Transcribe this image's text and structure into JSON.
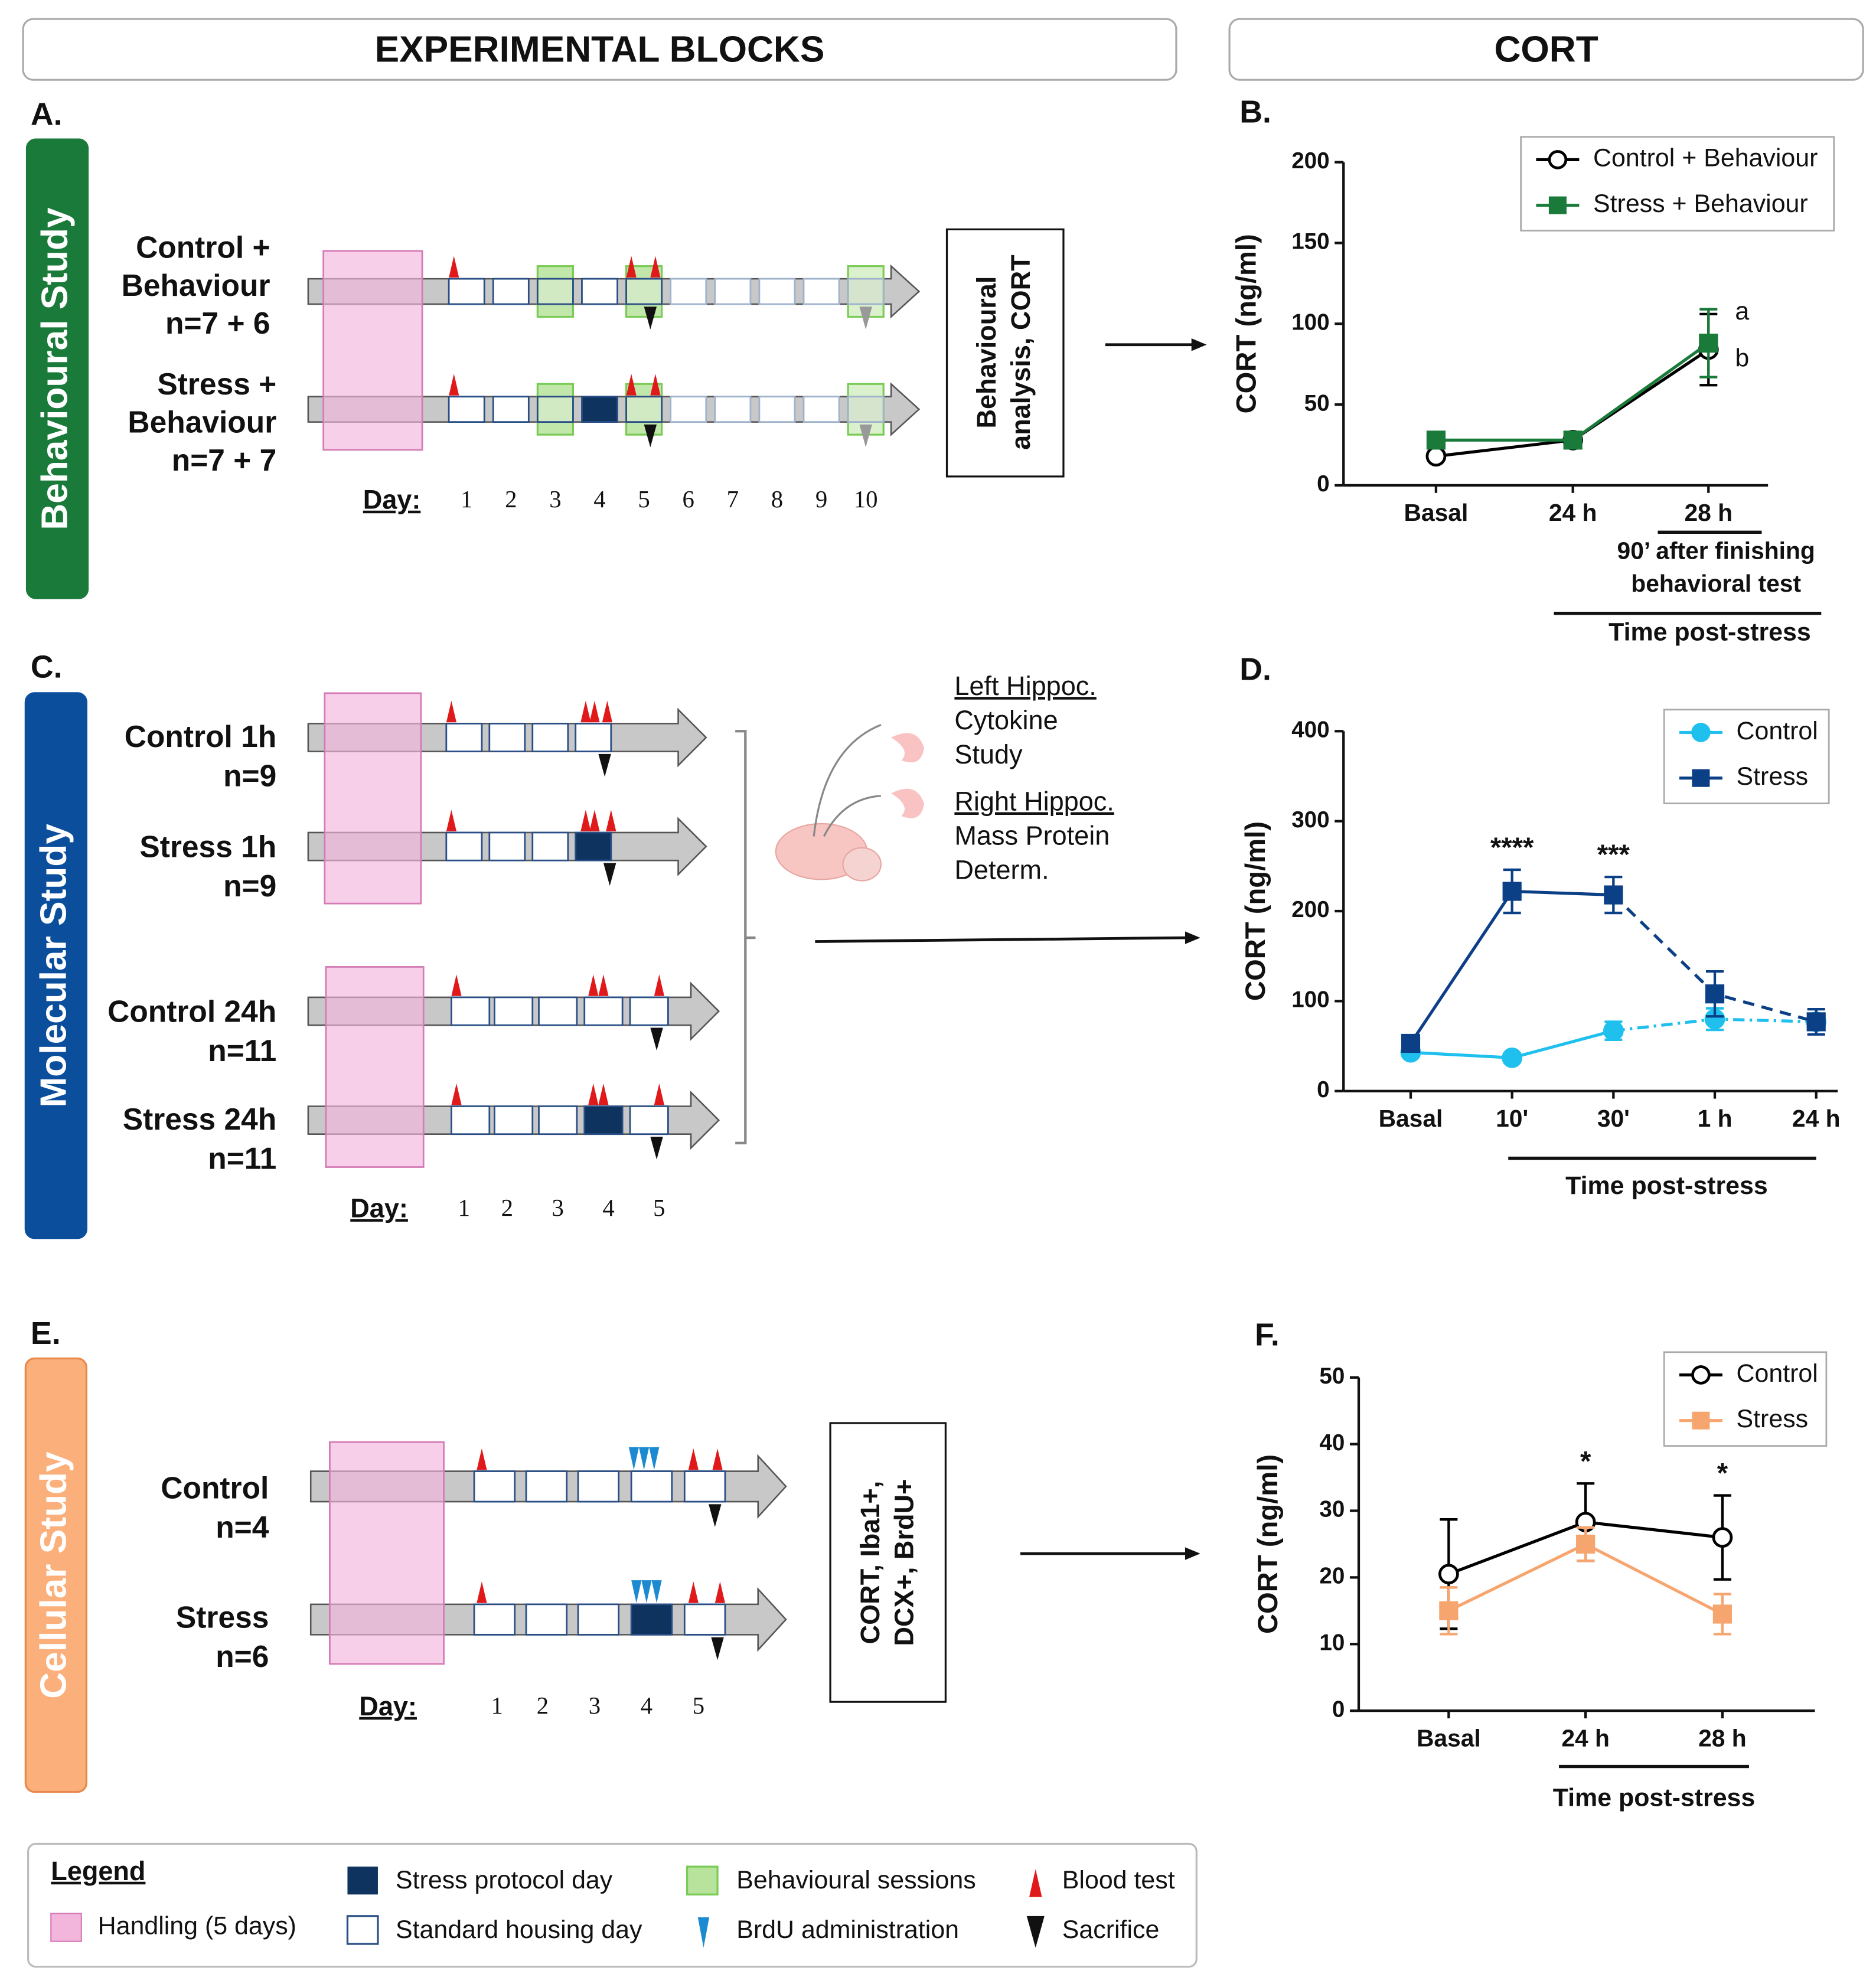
{
  "headers": {
    "left": "EXPERIMENTAL BLOCKS",
    "right": "CORT"
  },
  "panel_a": {
    "letter": "A.",
    "study": "Behavioural Study",
    "groups": [
      [
        "Control +",
        "Behaviour",
        "n=7 + 6"
      ],
      [
        "Stress +",
        "Behaviour",
        "n=7 + 7"
      ]
    ],
    "day_label": "Day:",
    "days": [
      1,
      2,
      3,
      4,
      5,
      6,
      7,
      8,
      9,
      10
    ],
    "outcome": [
      "Behavioural",
      "analysis, CORT"
    ]
  },
  "panel_c": {
    "letter": "C.",
    "study": "Molecular Study",
    "groups": [
      [
        "Control 1h",
        "n=9"
      ],
      [
        "Stress 1h",
        "n=9"
      ],
      [
        "Control 24h",
        "n=11"
      ],
      [
        "Stress 24h",
        "n=11"
      ]
    ],
    "day_label": "Day:",
    "days": [
      1,
      2,
      3,
      4,
      5
    ],
    "left_hippocampus": [
      "Left Hippoc.",
      "Cytokine",
      "Study"
    ],
    "right_hippocampus": [
      "Right Hippoc.",
      "Mass Protein",
      "Determ."
    ]
  },
  "panel_e": {
    "letter": "E.",
    "study": "Cellular Study",
    "groups": [
      [
        "Control",
        "n=4"
      ],
      [
        "Stress",
        "n=6"
      ]
    ],
    "day_label": "Day:",
    "days": [
      1,
      2,
      3,
      4,
      5
    ],
    "outcome": [
      "CORT, Iba1+,",
      "DCX+, BrdU+"
    ]
  },
  "chart_b": {
    "type": "line",
    "letter": "B.",
    "ylabel": "CORT (ng/ml)",
    "categories": [
      "Basal",
      "24 h",
      "28 h"
    ],
    "ylim": [
      0,
      200
    ],
    "yticks": [
      0,
      50,
      100,
      150,
      200
    ],
    "series": [
      {
        "name": "Control + Behaviour",
        "color": "#000000",
        "marker": "circle-open",
        "values": [
          18,
          28,
          84
        ],
        "errors": [
          null,
          null,
          22
        ],
        "annotations": [
          null,
          null,
          "b"
        ]
      },
      {
        "name": "Stress + Behaviour",
        "color": "#1a7a3a",
        "marker": "square",
        "values": [
          28,
          28,
          88
        ],
        "errors": [
          null,
          null,
          21
        ],
        "annotations": [
          null,
          null,
          "a"
        ]
      }
    ],
    "sub_label": [
      "90’ after finishing",
      "behavioral test"
    ],
    "xlabel": "Time post-stress"
  },
  "chart_d": {
    "type": "line",
    "letter": "D.",
    "ylabel": "CORT (ng/ml)",
    "categories": [
      "Basal",
      "10'",
      "30'",
      "1 h",
      "24 h"
    ],
    "ylim": [
      0,
      400
    ],
    "yticks": [
      0,
      100,
      200,
      300,
      400
    ],
    "series": [
      {
        "name": "Control",
        "color": "#1fc0ee",
        "marker": "circle",
        "values": [
          43,
          37,
          67,
          80,
          77
        ],
        "errors": [
          4,
          5,
          10,
          12,
          8
        ],
        "dash_from": 2,
        "line_style_after": "dash-dot"
      },
      {
        "name": "Stress",
        "color": "#0b3f86",
        "marker": "square",
        "values": [
          53,
          222,
          218,
          108,
          77
        ],
        "errors": [
          8,
          24,
          20,
          25,
          14
        ],
        "dash_from": 2,
        "line_style_after": "dashed"
      }
    ],
    "significance": [
      null,
      "****",
      "***",
      null,
      null
    ],
    "xlabel": "Time post-stress"
  },
  "chart_f": {
    "type": "line",
    "letter": "F.",
    "ylabel": "CORT (ng/ml)",
    "categories": [
      "Basal",
      "24 h",
      "28 h"
    ],
    "ylim": [
      0,
      50
    ],
    "yticks": [
      0,
      10,
      20,
      30,
      40,
      50
    ],
    "series": [
      {
        "name": "Control",
        "color": "#000000",
        "marker": "circle-open",
        "values": [
          20.5,
          28.3,
          26
        ],
        "errors": [
          8.2,
          5.8,
          6.3
        ]
      },
      {
        "name": "Stress",
        "color": "#f7a56f",
        "marker": "square",
        "values": [
          15,
          25,
          14.5
        ],
        "errors": [
          3.5,
          2.5,
          3
        ]
      }
    ],
    "significance": [
      null,
      "*",
      "*"
    ],
    "xlabel": "Time post-stress"
  },
  "legend": {
    "title": "Legend",
    "handling": "Handling (5 days)",
    "stress_day": "Stress protocol day",
    "housing_day": "Standard housing day",
    "behaviour": "Behavioural sessions",
    "brdu": "BrdU administration",
    "blood": "Blood test",
    "sacrifice": "Sacrifice"
  }
}
